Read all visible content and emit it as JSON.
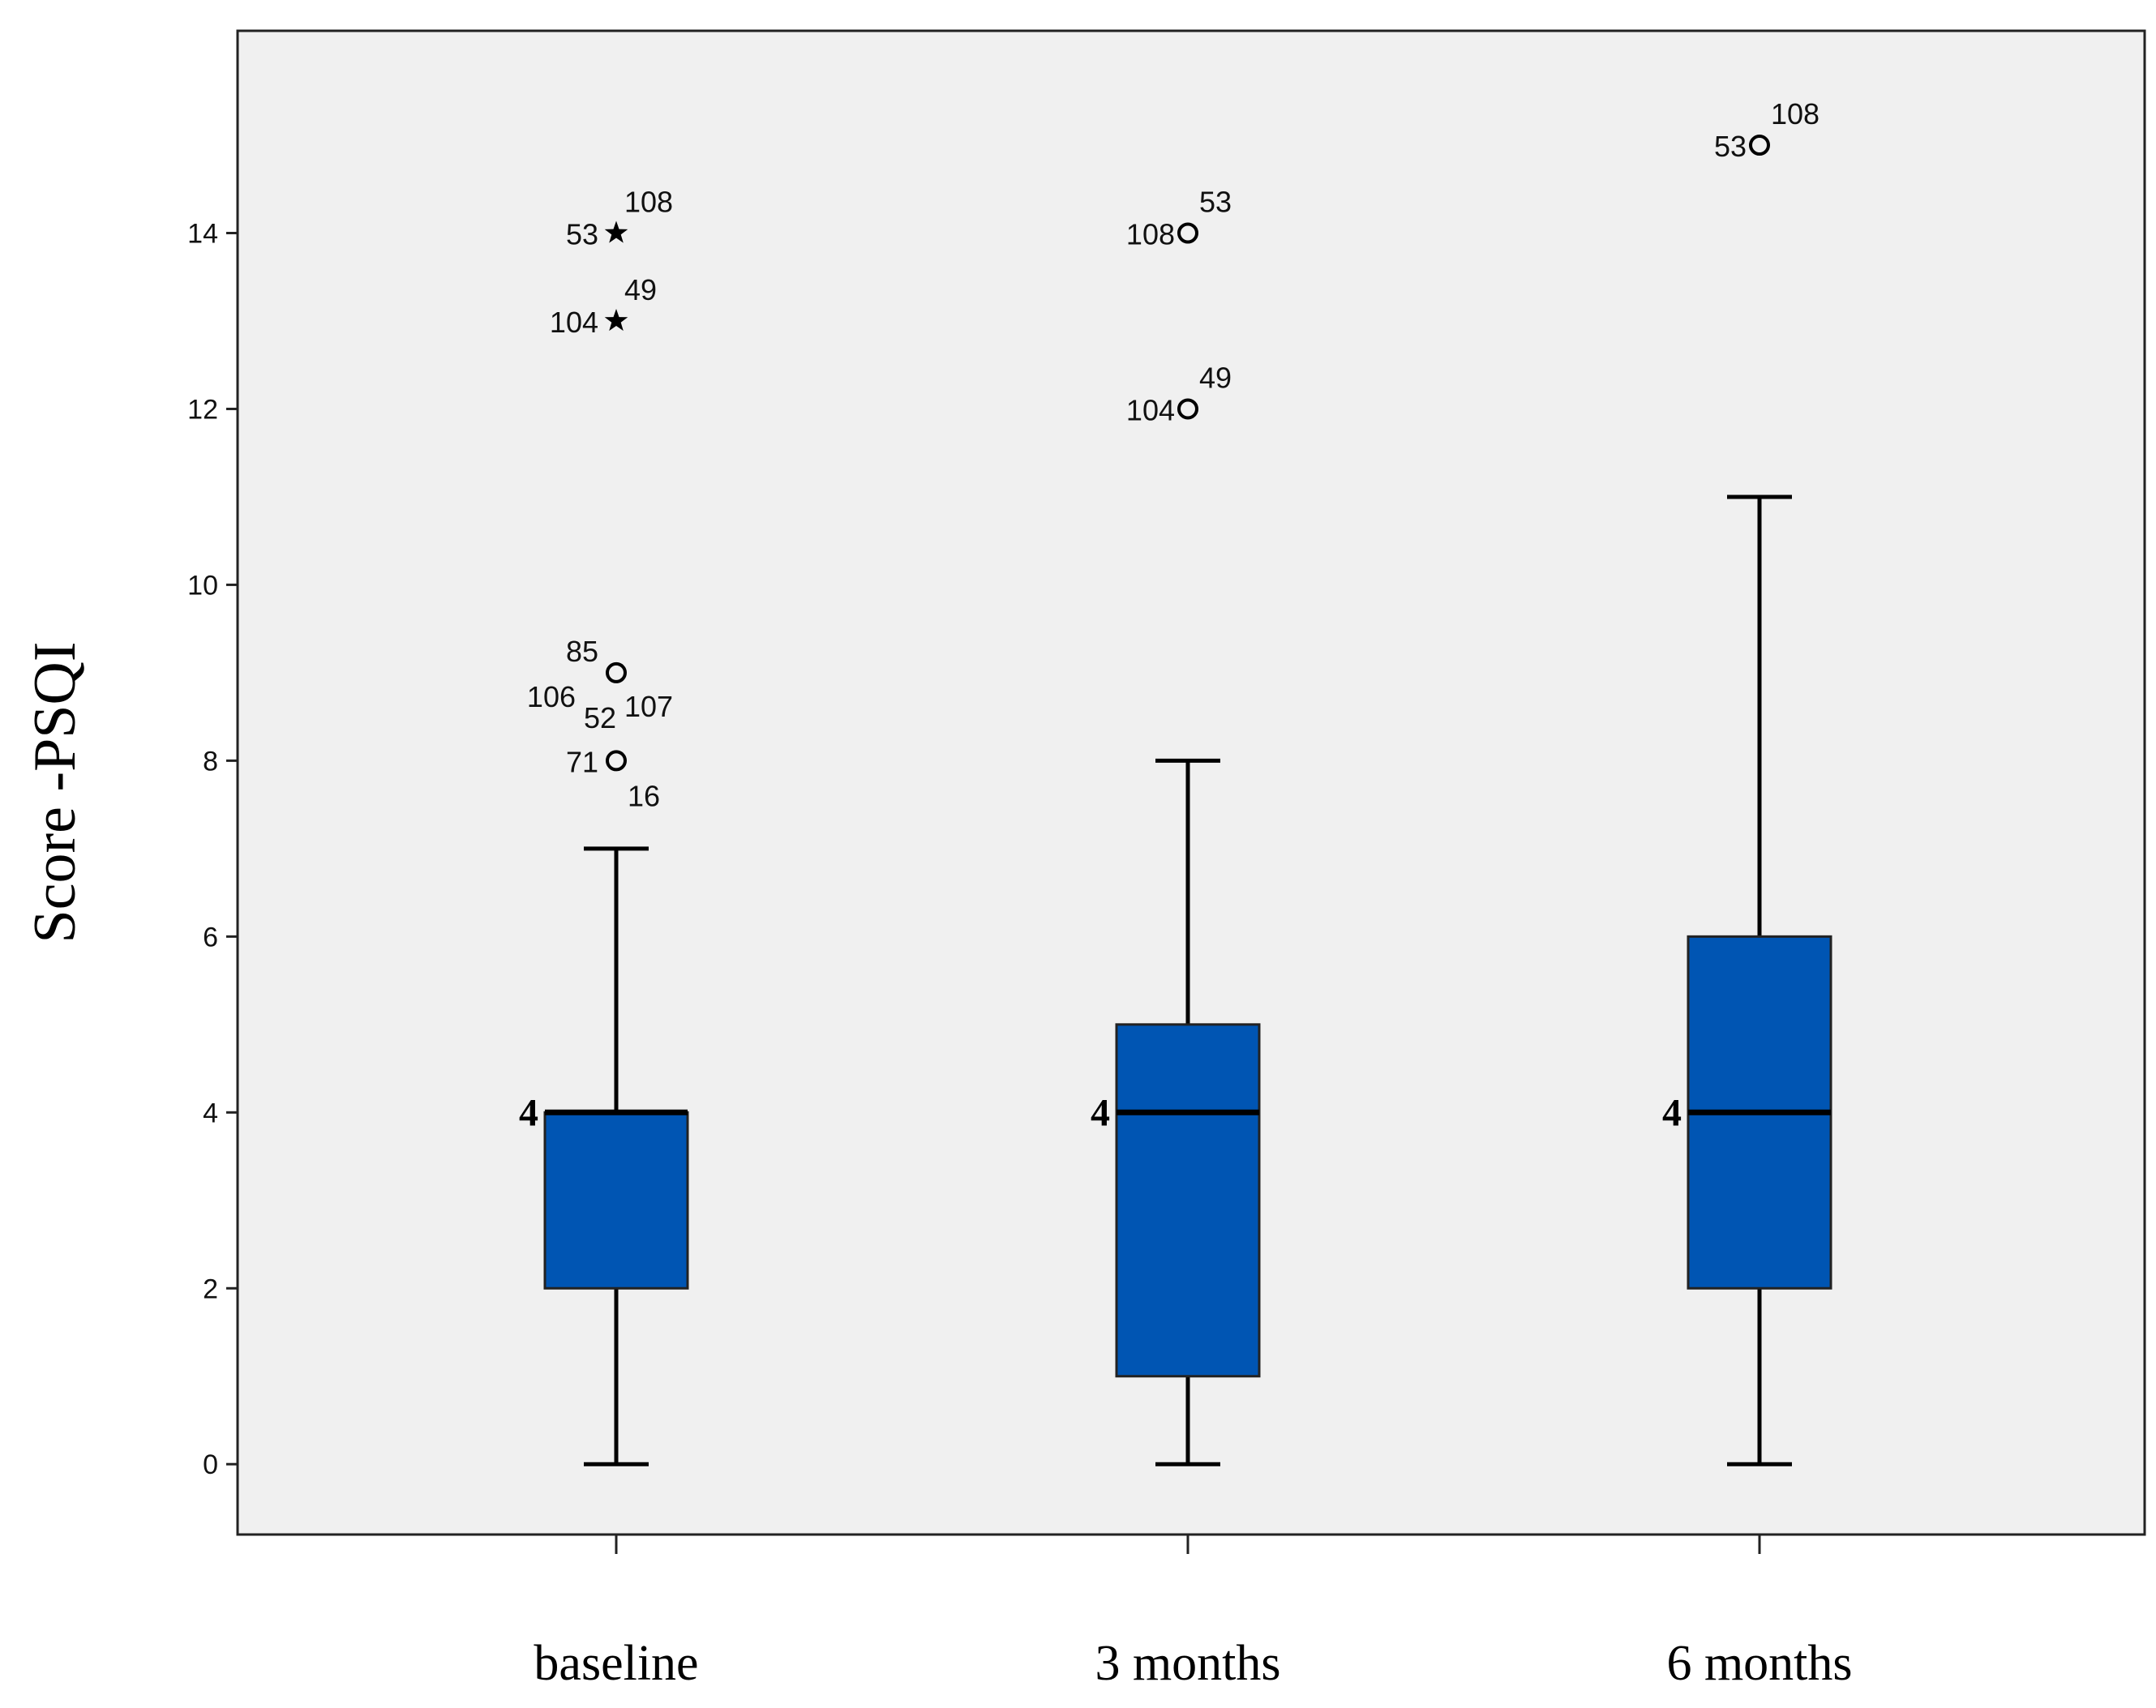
{
  "chart_data": {
    "type": "boxplot",
    "ylabel": "Score -PSQI",
    "xlabel": "",
    "ylim": [
      -0.8,
      16.3
    ],
    "yticks": [
      0,
      2,
      4,
      6,
      8,
      10,
      12,
      14
    ],
    "box_color": "#0055b3",
    "plot_bg": "#f0f0f0",
    "categories": [
      "baseline",
      "3 months",
      "6 months"
    ],
    "boxes": [
      {
        "category": "baseline",
        "whisker_low": 0,
        "q1": 2,
        "median": 4,
        "q3": 4,
        "whisker_high": 7,
        "median_label": "4",
        "outliers": [
          {
            "value": 14,
            "marker": "star",
            "labels": [
              "53",
              "108"
            ]
          },
          {
            "value": 13,
            "marker": "star",
            "labels": [
              "104",
              "49"
            ]
          },
          {
            "value": 9,
            "marker": "circle",
            "labels": [
              "85",
              "106",
              "52",
              "107"
            ]
          },
          {
            "value": 8,
            "marker": "circle",
            "labels": [
              "71",
              "16"
            ]
          }
        ]
      },
      {
        "category": "3 months",
        "whisker_low": 0,
        "q1": 1,
        "median": 4,
        "q3": 5,
        "whisker_high": 8,
        "median_label": "4",
        "outliers": [
          {
            "value": 14,
            "marker": "circle",
            "labels": [
              "108",
              "53"
            ]
          },
          {
            "value": 12,
            "marker": "circle",
            "labels": [
              "104",
              "49"
            ]
          }
        ]
      },
      {
        "category": "6 months",
        "whisker_low": 0,
        "q1": 2,
        "median": 4,
        "q3": 6,
        "whisker_high": 11,
        "median_label": "4",
        "outliers": [
          {
            "value": 15,
            "marker": "circle",
            "labels": [
              "53",
              "108"
            ]
          }
        ]
      }
    ]
  }
}
